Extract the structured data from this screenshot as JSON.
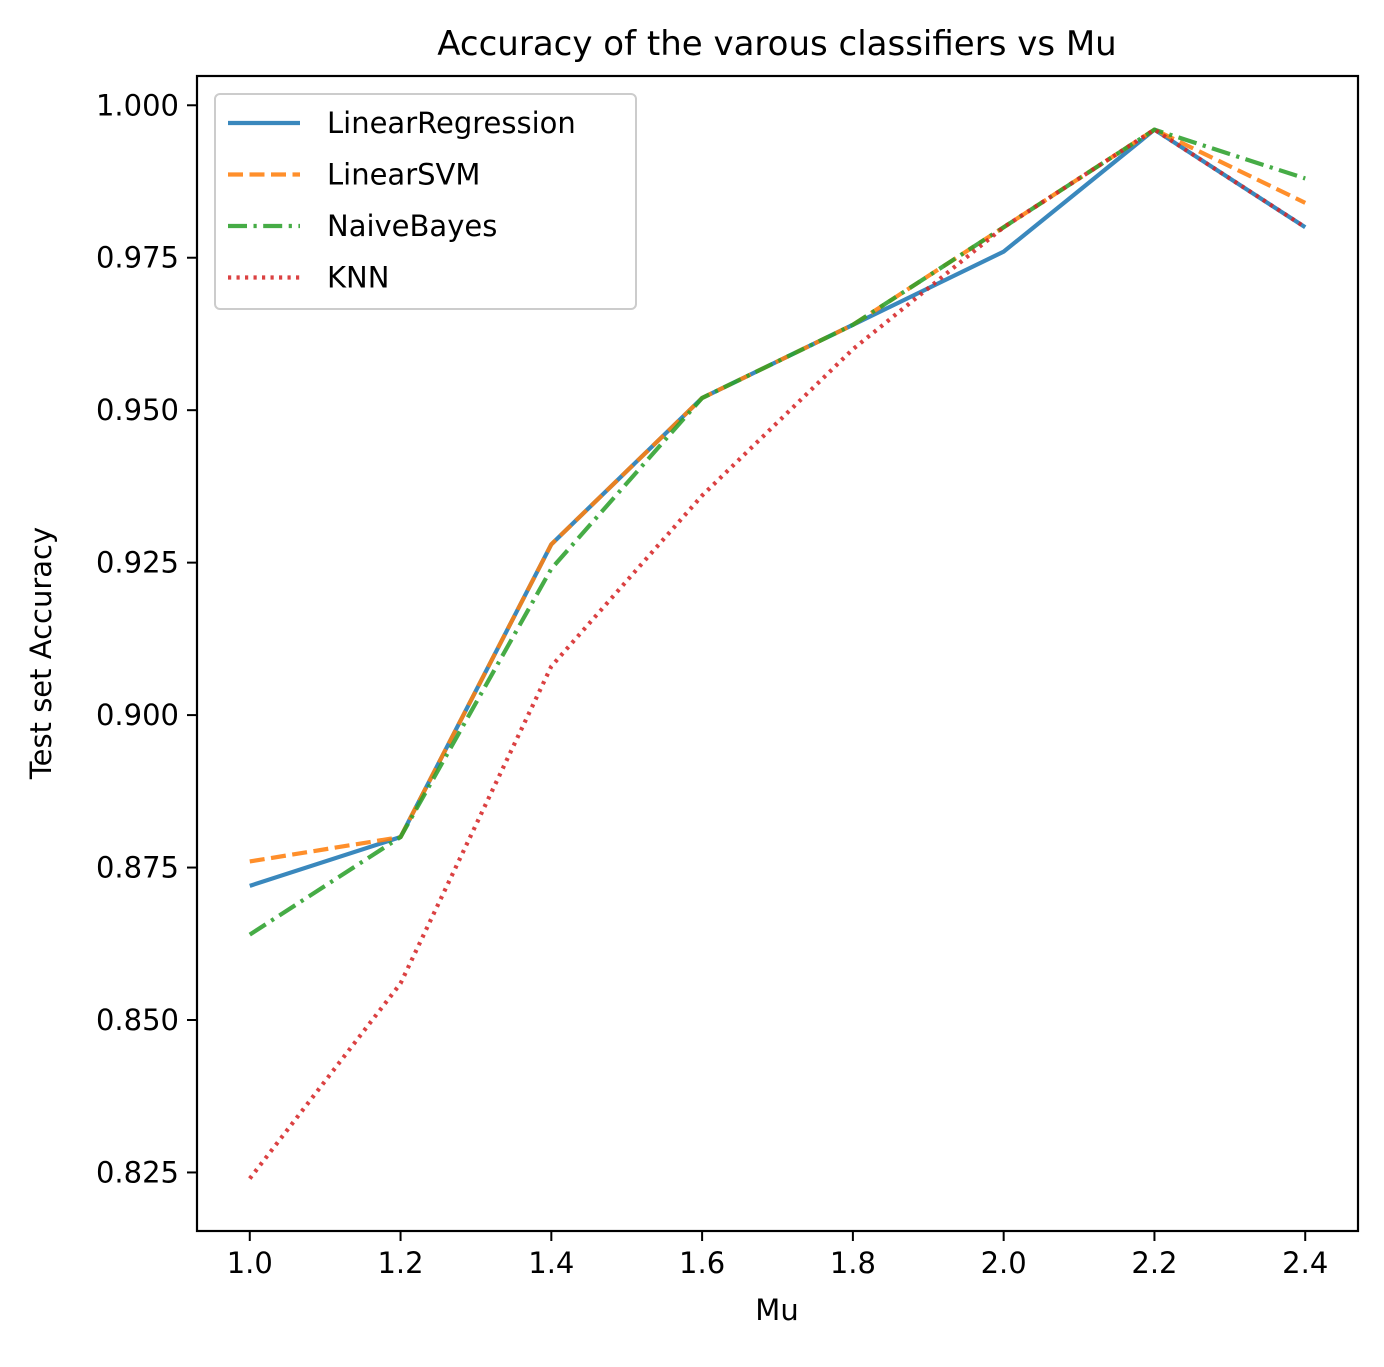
{
  "chart_data": {
    "type": "line",
    "title": "Accuracy of the varous classifiers vs Mu",
    "xlabel": "Mu",
    "ylabel": "Test set Accuracy",
    "x": [
      1.0,
      1.2,
      1.4,
      1.6,
      1.8,
      2.0,
      2.2,
      2.4
    ],
    "xticks": [
      "1.0",
      "1.2",
      "1.4",
      "1.6",
      "1.8",
      "2.0",
      "2.2",
      "2.4"
    ],
    "yticks": [
      "0.825",
      "0.850",
      "0.875",
      "0.900",
      "0.925",
      "0.950",
      "0.975",
      "1.000"
    ],
    "xlim": [
      0.93,
      2.47
    ],
    "ylim": [
      0.8154,
      1.0048
    ],
    "grid": false,
    "legend_position": "upper-left",
    "series": [
      {
        "name": "LinearRegression",
        "color": "#1f77b4",
        "linestyle": "solid",
        "values": [
          0.872,
          0.88,
          0.928,
          0.952,
          0.964,
          0.976,
          0.996,
          0.98
        ]
      },
      {
        "name": "LinearSVM",
        "color": "#ff7f0e",
        "linestyle": "dashed",
        "values": [
          0.876,
          0.88,
          0.928,
          0.952,
          0.964,
          0.98,
          0.996,
          0.984
        ]
      },
      {
        "name": "NaiveBayes",
        "color": "#2ca02c",
        "linestyle": "dashdot",
        "values": [
          0.864,
          0.88,
          0.924,
          0.952,
          0.964,
          0.98,
          0.996,
          0.988
        ]
      },
      {
        "name": "KNN",
        "color": "#d62728",
        "linestyle": "dotted",
        "values": [
          0.824,
          0.856,
          0.908,
          0.936,
          0.96,
          0.98,
          0.996,
          0.98
        ]
      }
    ]
  }
}
